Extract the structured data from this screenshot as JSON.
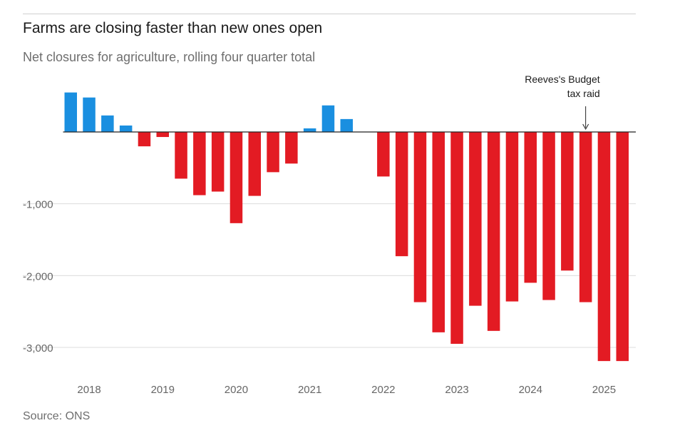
{
  "title": "Farms are closing faster than new ones open",
  "subtitle": "Net closures for agriculture, rolling four quarter total",
  "source": "Source: ONS",
  "colors": {
    "positive": "#1a8fe0",
    "negative": "#e31b23",
    "grid": "#dcdcdc",
    "zero": "#222222"
  },
  "chart_data": {
    "type": "bar",
    "title": "Farms are closing faster than new ones open",
    "ylabel": "",
    "xlabel": "",
    "ylim": [
      -3250,
      600
    ],
    "yticks": [
      -1000,
      -2000,
      -3000
    ],
    "ytick_labels": [
      "-1,000",
      "-2,000",
      "-3,000"
    ],
    "xtick_labels": [
      "2018",
      "2019",
      "2020",
      "2021",
      "2022",
      "2023",
      "2024",
      "2025"
    ],
    "xtick_bar_index": [
      1,
      5,
      9,
      13,
      17,
      21,
      25,
      29
    ],
    "categories": [
      "2018 Q1",
      "2018 Q2",
      "2018 Q3",
      "2018 Q4",
      "2019 Q1",
      "2019 Q2",
      "2019 Q3",
      "2019 Q4",
      "2020 Q1",
      "2020 Q2",
      "2020 Q3",
      "2020 Q4",
      "2021 Q1",
      "2021 Q2",
      "2021 Q3",
      "2021 Q4",
      "2022 Q1",
      "2022 Q2",
      "2022 Q3",
      "2022 Q4",
      "2023 Q1",
      "2023 Q2",
      "2023 Q3",
      "2023 Q4",
      "2024 Q1",
      "2024 Q2",
      "2024 Q3",
      "2024 Q4",
      "2025 Q1",
      "2025 Q2",
      "2025 Q3"
    ],
    "values": [
      550,
      480,
      230,
      90,
      -200,
      -70,
      -650,
      -880,
      -830,
      -1270,
      -890,
      -560,
      -440,
      50,
      370,
      180,
      0,
      -620,
      -1730,
      -2370,
      -2790,
      -2950,
      -2420,
      -2770,
      -2360,
      -2100,
      -2340,
      -1930,
      -2370,
      -3190,
      -3190
    ],
    "annotation": {
      "lines": [
        "Reeves's Budget",
        "tax raid"
      ],
      "bar_index": 28
    }
  }
}
